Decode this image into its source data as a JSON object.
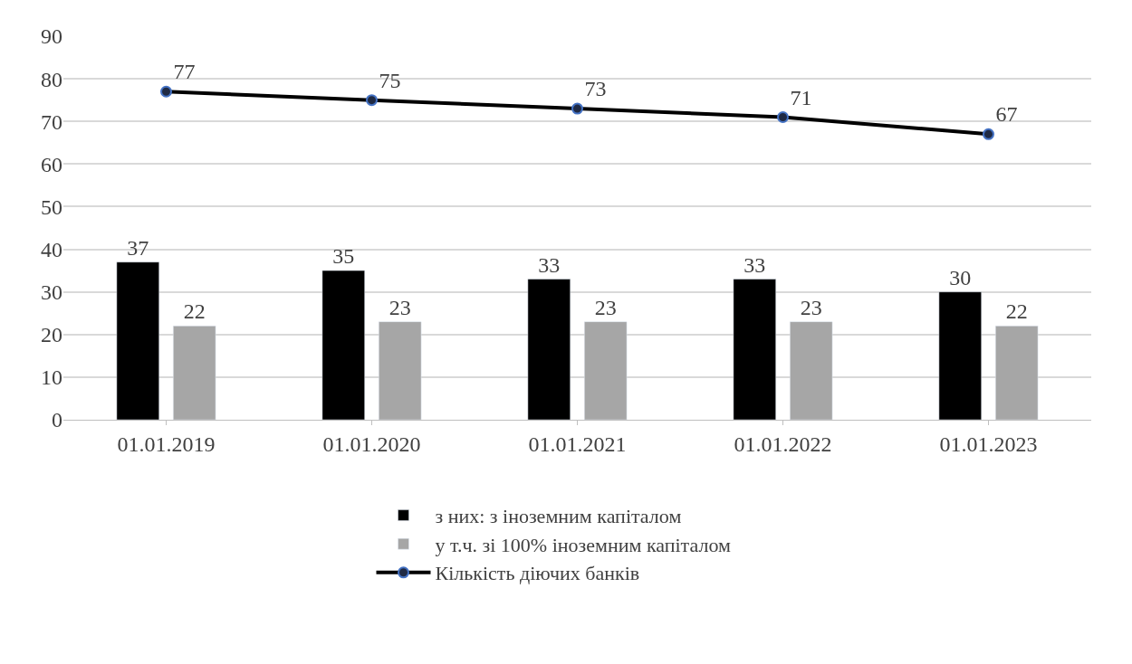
{
  "chart_data": {
    "type": "bar",
    "categories": [
      "01.01.2019",
      "01.01.2020",
      "01.01.2021",
      "01.01.2022",
      "01.01.2023"
    ],
    "series": [
      {
        "name": "з них: з іноземним капіталом",
        "color": "#000000",
        "values": [
          37,
          35,
          33,
          33,
          30
        ]
      },
      {
        "name": "у т.ч. зі 100% іноземним капіталом",
        "color": "#a6a6a6",
        "values": [
          22,
          23,
          23,
          23,
          22
        ]
      },
      {
        "name": "Кількість діючих банків",
        "type": "line",
        "color": "#000000",
        "values": [
          77,
          75,
          73,
          71,
          67
        ],
        "marker": "circle"
      }
    ],
    "ylim": [
      0,
      90
    ],
    "yticks": [
      0,
      10,
      20,
      30,
      40,
      50,
      60,
      70,
      80,
      90
    ],
    "grid": "y",
    "legend": "bottom",
    "data_labels": true
  }
}
